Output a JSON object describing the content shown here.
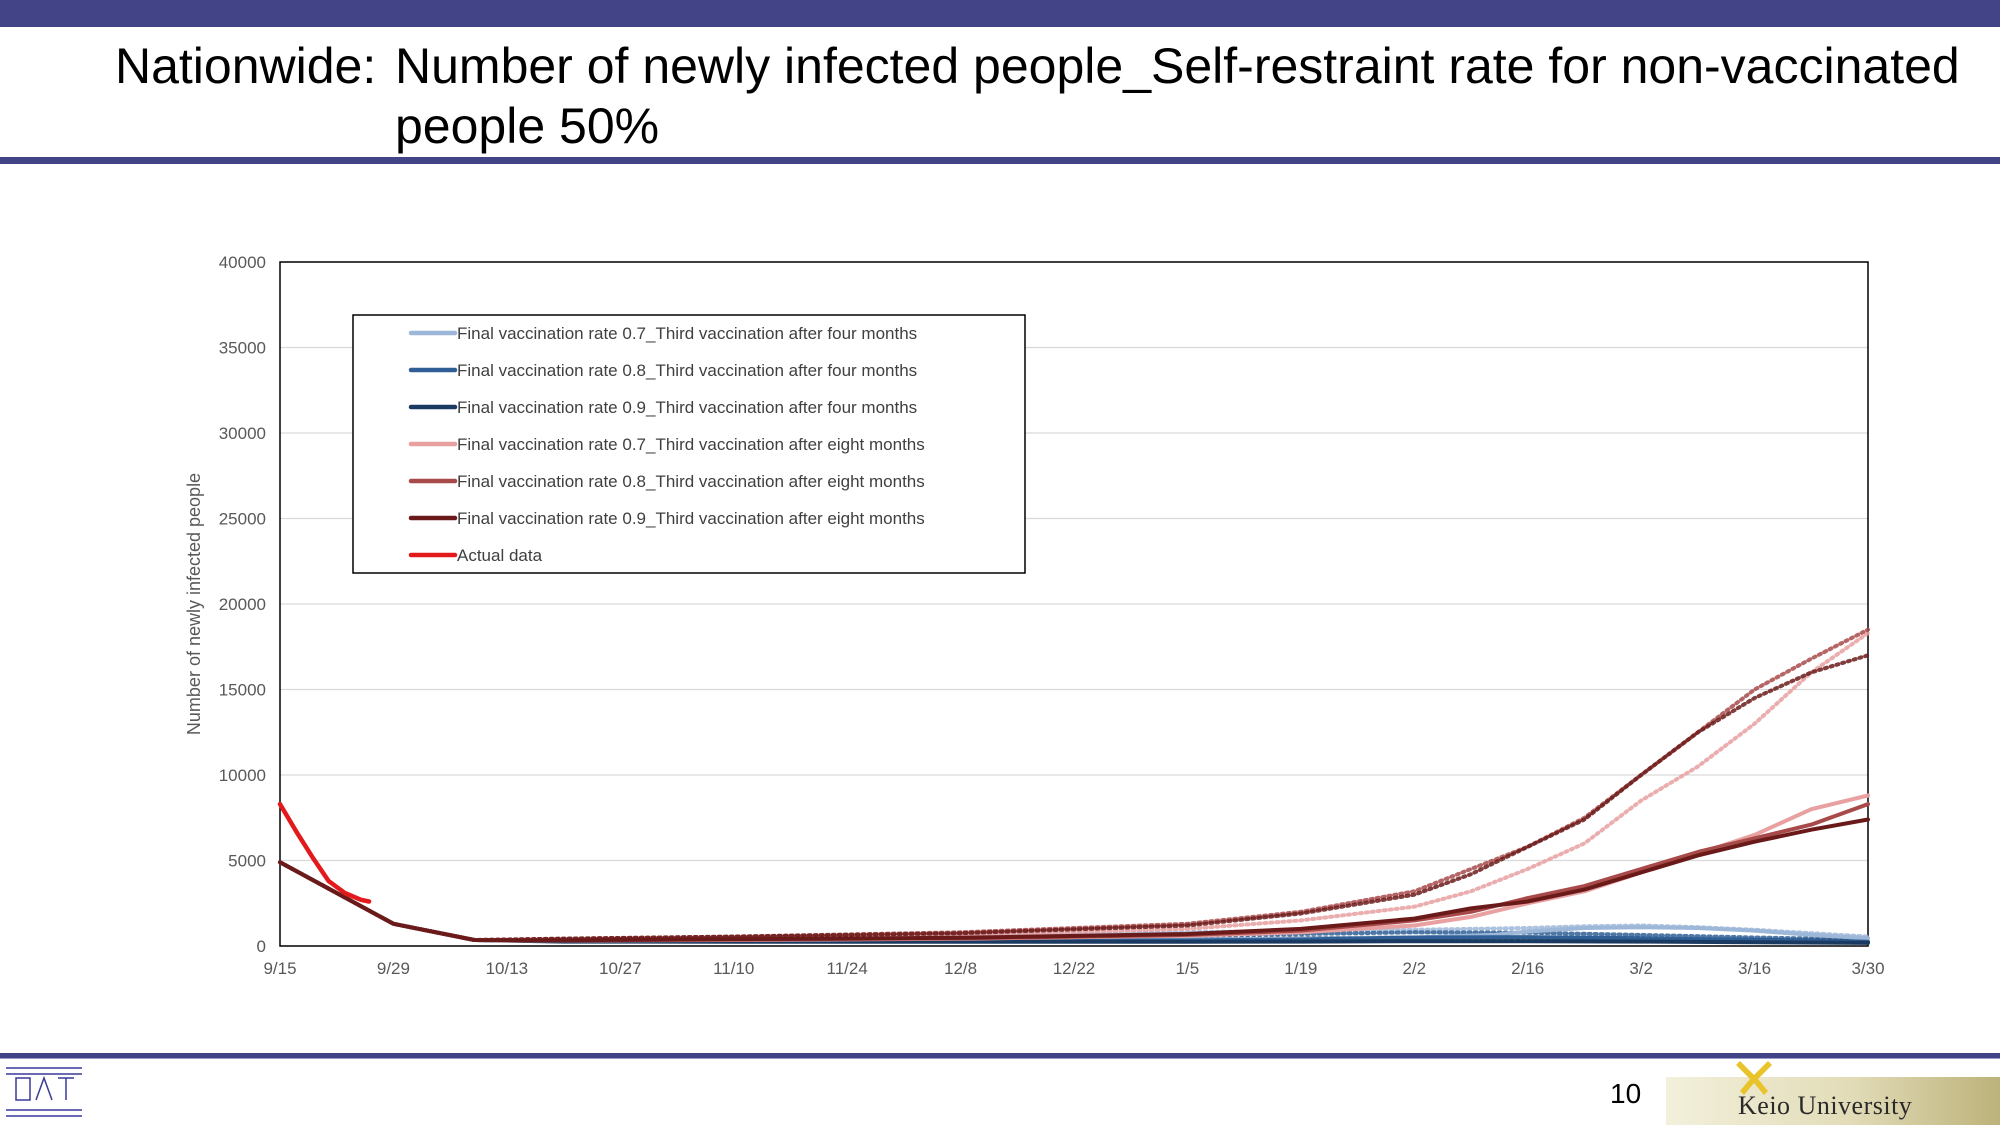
{
  "slide": {
    "title_prefix": "Nationwide:",
    "title": "Number of newly infected people_Self-restraint rate for non-vaccinated people 50%",
    "page_number": "10",
    "institution": "Keio University"
  },
  "chart_data": {
    "type": "line",
    "title": "",
    "ylabel": "Number of newly infected people",
    "xlabel": "",
    "ylim": [
      0,
      40000
    ],
    "yticks": [
      0,
      5000,
      10000,
      15000,
      20000,
      25000,
      30000,
      35000,
      40000
    ],
    "xticks": [
      "9/15",
      "9/29",
      "10/13",
      "10/27",
      "11/10",
      "11/24",
      "12/8",
      "12/22",
      "1/5",
      "1/19",
      "2/2",
      "2/16",
      "3/2",
      "3/16",
      "3/30"
    ],
    "x_range_days": [
      0,
      196
    ],
    "grid": "horizontal",
    "legend_position": "top-left",
    "series": [
      {
        "name": "Final vaccination rate 0.7_Third vaccination after four months",
        "color": "#9db7d9",
        "x": [
          0,
          14,
          24,
          35,
          56,
          84,
          112,
          126,
          140,
          150,
          154,
          161,
          168,
          175,
          182,
          189,
          196
        ],
        "y": [
          4900,
          1300,
          350,
          300,
          320,
          340,
          380,
          430,
          500,
          650,
          850,
          1050,
          1100,
          1050,
          900,
          650,
          450
        ],
        "dotted": {
          "x": [
            0,
            14,
            24,
            35,
            56,
            84,
            112,
            126,
            140,
            154,
            161,
            168,
            175,
            182,
            189,
            196
          ],
          "y": [
            4900,
            1300,
            350,
            380,
            500,
            600,
            800,
            900,
            950,
            1050,
            1150,
            1200,
            1100,
            950,
            750,
            550
          ]
        }
      },
      {
        "name": "Final vaccination rate 0.8_Third vaccination after four months",
        "color": "#2f5f95",
        "x": [
          0,
          14,
          24,
          35,
          56,
          84,
          112,
          126,
          140,
          154,
          168,
          182,
          196
        ],
        "y": [
          4900,
          1300,
          350,
          280,
          280,
          300,
          330,
          380,
          500,
          520,
          450,
          350,
          250
        ],
        "dotted": {
          "x": [
            0,
            14,
            24,
            35,
            56,
            84,
            112,
            126,
            140,
            154,
            168,
            182,
            196
          ],
          "y": [
            4900,
            1300,
            350,
            330,
            420,
            500,
            650,
            700,
            800,
            780,
            650,
            500,
            380
          ]
        }
      },
      {
        "name": "Final vaccination rate 0.9_Third vaccination after four months",
        "color": "#1a3a62",
        "x": [
          0,
          14,
          24,
          35,
          56,
          84,
          112,
          126,
          140,
          154,
          168,
          182,
          196
        ],
        "y": [
          4900,
          1300,
          350,
          260,
          250,
          250,
          250,
          260,
          280,
          280,
          260,
          220,
          180
        ],
        "dotted": {
          "x": [
            0,
            14,
            24,
            35,
            56,
            84,
            112,
            126,
            140,
            154,
            168,
            182,
            196
          ],
          "y": [
            4900,
            1300,
            350,
            300,
            330,
            380,
            420,
            460,
            500,
            480,
            420,
            360,
            300
          ]
        }
      },
      {
        "name": "Final vaccination rate 0.7_Third vaccination after eight months",
        "color": "#e8a0a0",
        "x": [
          0,
          14,
          24,
          35,
          56,
          84,
          112,
          126,
          140,
          147,
          154,
          161,
          168,
          175,
          182,
          189,
          196
        ],
        "y": [
          4900,
          1300,
          350,
          320,
          350,
          420,
          600,
          800,
          1200,
          1700,
          2500,
          3200,
          4300,
          5400,
          6500,
          8000,
          8800
        ],
        "dotted": {
          "x": [
            0,
            14,
            24,
            35,
            56,
            84,
            112,
            126,
            140,
            147,
            154,
            161,
            168,
            175,
            182,
            189,
            196
          ],
          "y": [
            4900,
            1300,
            350,
            400,
            480,
            650,
            1000,
            1500,
            2300,
            3200,
            4500,
            6000,
            8500,
            10500,
            13000,
            16000,
            18300
          ]
        }
      },
      {
        "name": "Final vaccination rate 0.8_Third vaccination after eight months",
        "color": "#a84a4a",
        "x": [
          0,
          14,
          24,
          35,
          56,
          84,
          112,
          126,
          140,
          147,
          154,
          161,
          168,
          175,
          182,
          189,
          196
        ],
        "y": [
          4900,
          1300,
          350,
          330,
          380,
          450,
          650,
          900,
          1500,
          2000,
          2800,
          3500,
          4500,
          5500,
          6300,
          7100,
          8300
        ],
        "dotted": {
          "x": [
            0,
            14,
            24,
            35,
            56,
            84,
            112,
            126,
            140,
            147,
            154,
            161,
            168,
            175,
            182,
            189,
            196
          ],
          "y": [
            4900,
            1300,
            350,
            420,
            550,
            800,
            1300,
            2000,
            3200,
            4500,
            5800,
            7500,
            10000,
            12500,
            15000,
            16800,
            18500
          ]
        }
      },
      {
        "name": "Final vaccination rate 0.9_Third vaccination after eight months",
        "color": "#6b1a1a",
        "x": [
          0,
          14,
          24,
          35,
          56,
          84,
          112,
          126,
          140,
          147,
          154,
          161,
          168,
          175,
          182,
          189,
          196
        ],
        "y": [
          4900,
          1300,
          350,
          340,
          400,
          480,
          700,
          1000,
          1600,
          2200,
          2600,
          3300,
          4300,
          5300,
          6100,
          6800,
          7400
        ],
        "dotted": {
          "x": [
            0,
            14,
            24,
            35,
            56,
            84,
            112,
            126,
            140,
            147,
            154,
            161,
            168,
            175,
            182,
            189,
            196
          ],
          "y": [
            4900,
            1300,
            350,
            430,
            550,
            750,
            1200,
            1900,
            3000,
            4200,
            5800,
            7400,
            10000,
            12500,
            14500,
            16000,
            17000
          ]
        }
      },
      {
        "name": "Actual data",
        "color": "#e31a1c",
        "x": [
          0,
          2,
          4,
          6,
          8,
          10,
          11
        ],
        "y": [
          8300,
          6700,
          5200,
          3800,
          3100,
          2700,
          2600
        ]
      }
    ]
  }
}
